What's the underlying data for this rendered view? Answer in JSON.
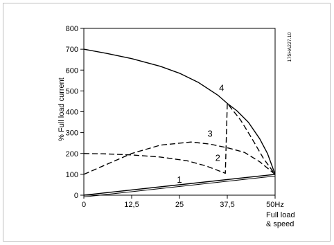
{
  "chart_data": {
    "type": "line",
    "ylabel": "% Full load current",
    "xlabel_line1": "Full load",
    "xlabel_line2": "& speed",
    "figure_code": "175HA227.10",
    "xlim": [
      0,
      50
    ],
    "ylim": [
      0,
      800
    ],
    "x_ticks": [
      0,
      12.5,
      25,
      37.5,
      50
    ],
    "x_tick_labels": [
      "0",
      "12,5",
      "25",
      "37,5",
      "50Hz"
    ],
    "y_ticks": [
      0,
      100,
      200,
      300,
      400,
      500,
      600,
      700,
      800
    ],
    "y_tick_labels": [
      "0",
      "100",
      "200",
      "300",
      "400",
      "500",
      "600",
      "700",
      "800"
    ],
    "series": [
      {
        "name": "1",
        "style": "solid",
        "points": [
          [
            0,
            0
          ],
          [
            50,
            100
          ]
        ]
      },
      {
        "name": "2",
        "style": "dashed",
        "points": [
          [
            0,
            200
          ],
          [
            6,
            198
          ],
          [
            12.5,
            193
          ],
          [
            20,
            183
          ],
          [
            27,
            165
          ],
          [
            32,
            140
          ],
          [
            37,
            105
          ],
          [
            37.5,
            440
          ],
          [
            41,
            360
          ],
          [
            44,
            270
          ],
          [
            47,
            175
          ],
          [
            50,
            100
          ]
        ]
      },
      {
        "name": "3",
        "style": "dashed",
        "points": [
          [
            0,
            100
          ],
          [
            5,
            140
          ],
          [
            12.5,
            200
          ],
          [
            20,
            240
          ],
          [
            28,
            255
          ],
          [
            33,
            245
          ],
          [
            38,
            225
          ],
          [
            42,
            205
          ],
          [
            46,
            160
          ],
          [
            50,
            100
          ]
        ]
      },
      {
        "name": "4",
        "style": "solid",
        "points": [
          [
            0,
            700
          ],
          [
            6,
            680
          ],
          [
            12.5,
            655
          ],
          [
            20,
            618
          ],
          [
            25,
            585
          ],
          [
            30,
            540
          ],
          [
            35,
            480
          ],
          [
            37.5,
            440
          ],
          [
            40,
            405
          ],
          [
            43,
            350
          ],
          [
            46,
            270
          ],
          [
            48,
            200
          ],
          [
            50,
            100
          ]
        ]
      }
    ],
    "curve_labels": [
      {
        "text": "1",
        "x": 25,
        "y": 60
      },
      {
        "text": "2",
        "x": 35,
        "y": 165
      },
      {
        "text": "3",
        "x": 33,
        "y": 280
      },
      {
        "text": "4",
        "x": 36,
        "y": 500
      }
    ]
  }
}
